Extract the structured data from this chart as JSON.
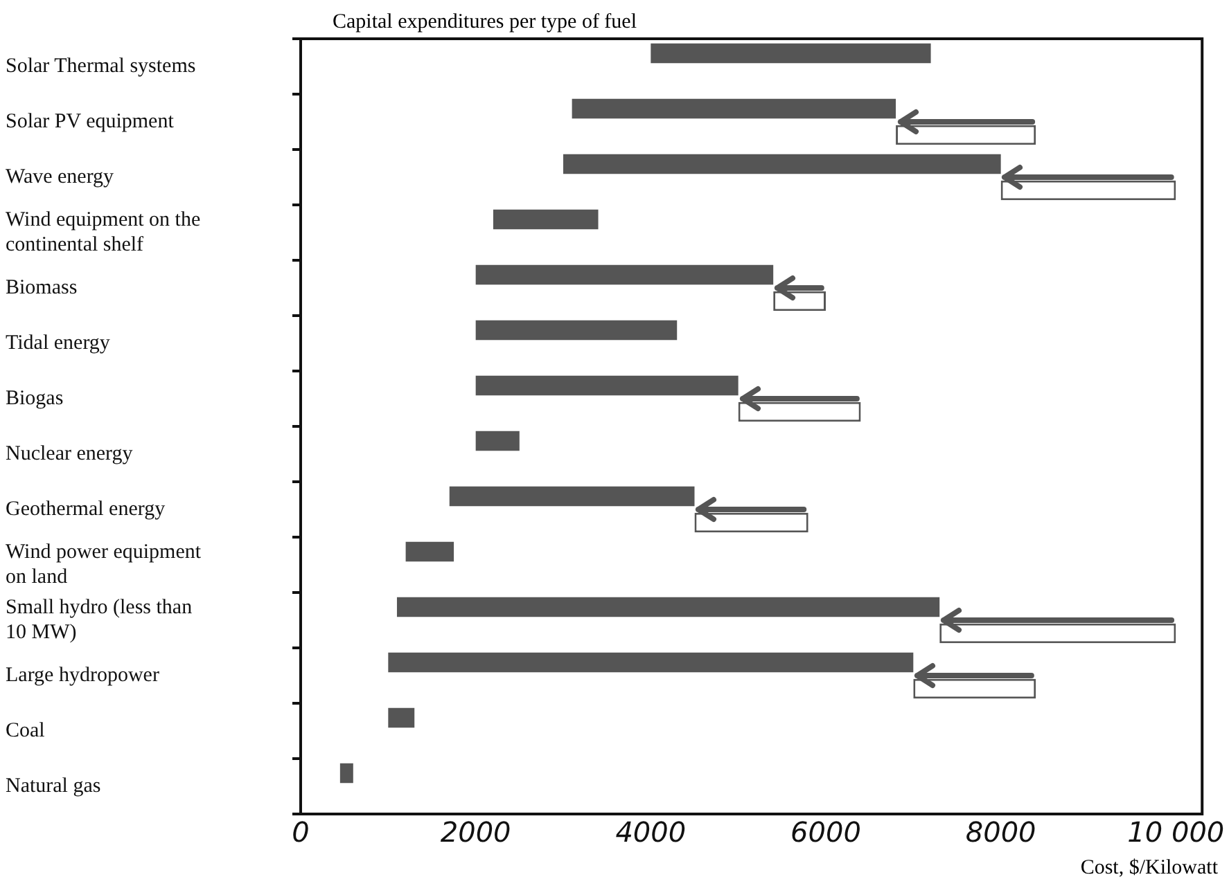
{
  "chart_data": {
    "type": "bar",
    "orientation": "horizontal",
    "title": "Capital expenditures per type of fuel",
    "xlabel": "Cost, $/Kilowatt",
    "categories": [
      "Solar Thermal systems",
      "Solar PV equipment",
      "Wave energy",
      "Wind equipment on the continental shelf",
      "Biomass",
      "Tidal energy",
      "Biogas",
      "Nuclear energy",
      "Geothermal energy",
      "Wind power equipment on land",
      "Small hydro (less than 10 MW)",
      "Large hydropower",
      "Coal",
      "Natural gas"
    ],
    "series": [
      {
        "color": "#555555",
        "base": [
          4000,
          3100,
          3000,
          2200,
          2000,
          2000,
          2000,
          2000,
          1700,
          1200,
          1100,
          1000,
          1000,
          450
        ],
        "values": [
          3200,
          3700,
          5000,
          1200,
          3400,
          2300,
          3000,
          500,
          2800,
          550,
          6200,
          6000,
          300,
          150
        ]
      },
      {
        "color": "#ffffff",
        "base": [
          null,
          6800,
          8000,
          null,
          5400,
          null,
          5000,
          null,
          4500,
          null,
          7300,
          7000,
          null,
          null
        ],
        "values": [
          null,
          1600,
          2000,
          null,
          600,
          null,
          1400,
          null,
          1300,
          null,
          2700,
          1400,
          null,
          null
        ]
      }
    ],
    "xlim": [
      0,
      10300
    ],
    "xticks": [
      0,
      2000,
      4000,
      6000,
      8000,
      {
        "value": 10000,
        "label": "10 000"
      }
    ],
    "grid": false,
    "legend": false
  }
}
